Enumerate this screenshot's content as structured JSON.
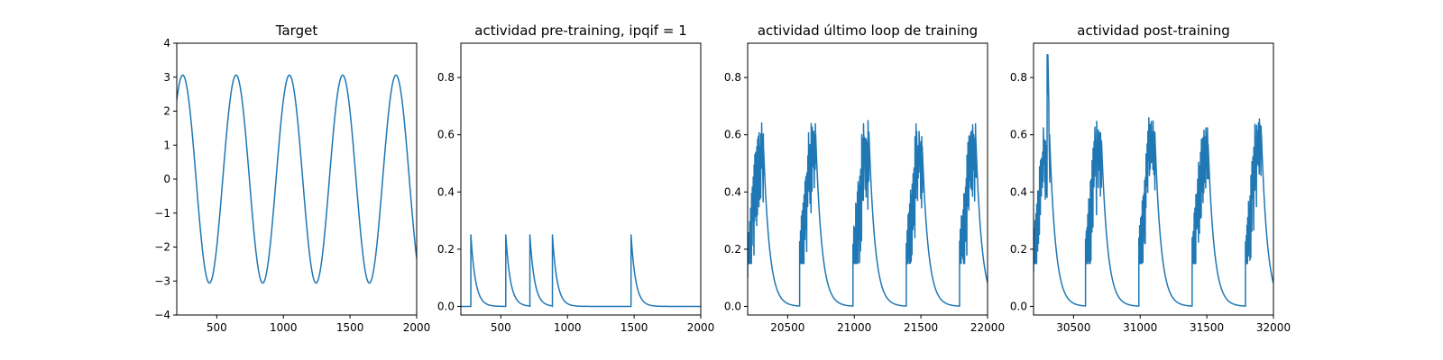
{
  "figure": {
    "background": "#ffffff",
    "line_color": "#1f77b4"
  },
  "chart_data": [
    {
      "type": "line",
      "title": "Target",
      "xlabel": "",
      "ylabel": "",
      "xlim": [
        200,
        2000
      ],
      "ylim": [
        -4,
        4
      ],
      "xticks": [
        500,
        1000,
        1500,
        2000
      ],
      "yticks": [
        -4,
        -3,
        -2,
        -1,
        0,
        1,
        2,
        3,
        4
      ],
      "grid": false,
      "series": [
        {
          "kind": "sine",
          "amplitude": 3.06,
          "period": 400,
          "peak_x": 245,
          "x_range": [
            200,
            2000
          ],
          "description": "sinusoid with peaks near 245, 645, 1045, 1445, 1845 and troughs near 445, 845, 1245, 1645"
        }
      ]
    },
    {
      "type": "line",
      "title": "actividad pre-training, ipqif = 1",
      "xlabel": "",
      "ylabel": "",
      "xlim": [
        200,
        2000
      ],
      "ylim": [
        -0.03,
        0.92
      ],
      "xticks": [
        500,
        1000,
        1500,
        2000
      ],
      "yticks": [
        0.0,
        0.2,
        0.4,
        0.6,
        0.8
      ],
      "grid": false,
      "series": [
        {
          "kind": "spike-decay",
          "baseline": 0,
          "x_range": [
            200,
            2000
          ],
          "decay_tau": 35,
          "spikes": [
            {
              "x": 275,
              "peak": 0.25
            },
            {
              "x": 537,
              "peak": 0.25
            },
            {
              "x": 718,
              "peak": 0.25
            },
            {
              "x": 887,
              "peak": 0.25
            },
            {
              "x": 1477,
              "peak": 0.25
            }
          ]
        }
      ]
    },
    {
      "type": "line",
      "title": "actividad último loop de training",
      "xlabel": "",
      "ylabel": "",
      "xlim": [
        20200,
        22000
      ],
      "ylim": [
        -0.03,
        0.92
      ],
      "xticks": [
        20500,
        21000,
        21500,
        22000
      ],
      "yticks": [
        0.0,
        0.2,
        0.4,
        0.6,
        0.8
      ],
      "grid": false,
      "series": [
        {
          "kind": "burst-decay",
          "x_range": [
            20200,
            22000
          ],
          "start_value": 0.1,
          "burst_period": 400,
          "burst_length": 120,
          "burst_starts": [
            20200,
            20590,
            20990,
            21390,
            21790
          ],
          "burst_peak_max": 0.65,
          "decay_tau": 45
        }
      ]
    },
    {
      "type": "line",
      "title": "actividad post-training",
      "xlabel": "",
      "ylabel": "",
      "xlim": [
        30200,
        32000
      ],
      "ylim": [
        -0.03,
        0.92
      ],
      "xticks": [
        30500,
        31000,
        31500,
        32000
      ],
      "yticks": [
        0.0,
        0.2,
        0.4,
        0.6,
        0.8
      ],
      "grid": false,
      "series": [
        {
          "kind": "burst-decay",
          "x_range": [
            30200,
            32000
          ],
          "start_value": 0.12,
          "burst_period": 400,
          "burst_length": 120,
          "burst_starts": [
            30200,
            30590,
            30990,
            31390,
            31790
          ],
          "burst_peak_max": 0.66,
          "max_peak": {
            "x": 30305,
            "value": 0.88
          },
          "decay_tau": 45
        }
      ]
    }
  ]
}
